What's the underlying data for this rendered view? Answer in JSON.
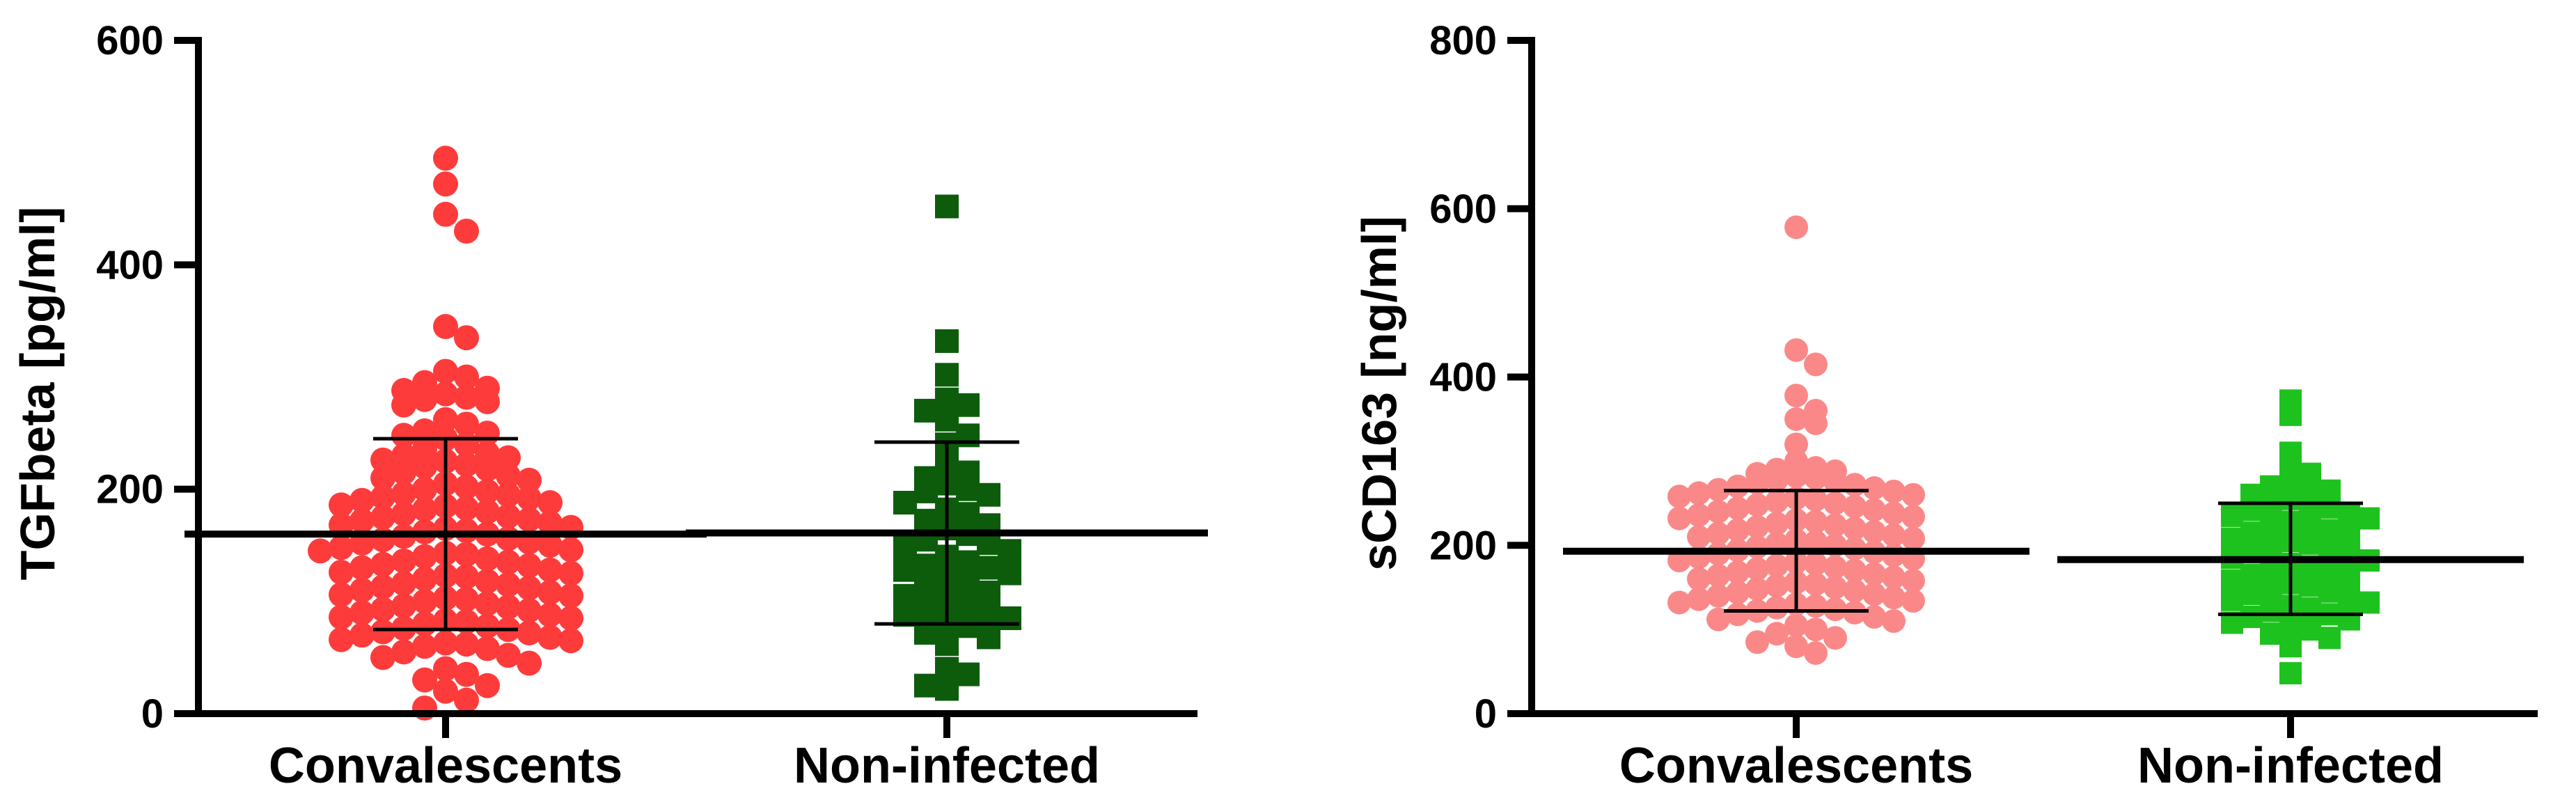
{
  "chart_data": [
    {
      "type": "scatter",
      "title": "",
      "ylabel": "TGFbeta [pg/ml]",
      "ylim": [
        0,
        600
      ],
      "yticks": [
        "0",
        "200",
        "400",
        "600"
      ],
      "categories": [
        "Convalescents",
        "Non-infected"
      ],
      "series": [
        {
          "name": "Convalescents",
          "marker": "circle",
          "color": "#fe3b3b",
          "mean": 160,
          "sd_upper": 245,
          "sd_lower": 75,
          "values": [
            495,
            472,
            445,
            430,
            345,
            335,
            305,
            300,
            295,
            290,
            288,
            285,
            282,
            280,
            278,
            275,
            262,
            258,
            252,
            250,
            248,
            245,
            240,
            236,
            232,
            230,
            228,
            226,
            225,
            222,
            220,
            218,
            215,
            212,
            210,
            208,
            205,
            202,
            200,
            198,
            196,
            195,
            193,
            192,
            190,
            188,
            186,
            185,
            183,
            182,
            180,
            178,
            176,
            175,
            173,
            172,
            170,
            168,
            166,
            165,
            163,
            162,
            160,
            158,
            156,
            155,
            153,
            152,
            150,
            148,
            146,
            145,
            143,
            142,
            140,
            138,
            136,
            135,
            133,
            132,
            130,
            128,
            126,
            125,
            123,
            122,
            120,
            118,
            116,
            115,
            113,
            112,
            110,
            108,
            106,
            105,
            103,
            102,
            100,
            98,
            96,
            95,
            93,
            92,
            90,
            88,
            86,
            85,
            83,
            82,
            80,
            78,
            76,
            75,
            73,
            72,
            70,
            68,
            66,
            65,
            63,
            62,
            60,
            58,
            55,
            52,
            50,
            45,
            40,
            35,
            30,
            25,
            20,
            12,
            5
          ]
        },
        {
          "name": "Non-infected",
          "marker": "square",
          "color": "#0c5c0c",
          "mean": 161,
          "sd_upper": 242,
          "sd_lower": 80,
          "values": [
            452,
            332,
            302,
            280,
            275,
            270,
            262,
            248,
            240,
            220,
            215,
            210,
            205,
            200,
            198,
            195,
            188,
            182,
            178,
            172,
            168,
            165,
            160,
            155,
            152,
            148,
            145,
            140,
            135,
            132,
            130,
            128,
            125,
            120,
            115,
            112,
            108,
            105,
            100,
            95,
            92,
            90,
            88,
            85,
            80,
            78,
            72,
            68,
            62,
            40,
            35,
            25,
            22
          ]
        }
      ]
    },
    {
      "type": "scatter",
      "title": "",
      "ylabel": "sCD163 [ng/ml]",
      "ylim": [
        0,
        800
      ],
      "yticks": [
        "0",
        "200",
        "400",
        "600",
        "800"
      ],
      "categories": [
        "Convalescents",
        "Non-infected"
      ],
      "series": [
        {
          "name": "Convalescents",
          "marker": "circle",
          "color": "#fb8888",
          "mean": 193,
          "sd_upper": 265,
          "sd_lower": 122,
          "values": [
            578,
            432,
            415,
            378,
            360,
            350,
            345,
            320,
            300,
            292,
            290,
            288,
            285,
            282,
            280,
            278,
            276,
            274,
            272,
            270,
            268,
            266,
            264,
            262,
            260,
            258,
            256,
            254,
            252,
            250,
            248,
            246,
            244,
            242,
            240,
            238,
            236,
            234,
            232,
            230,
            228,
            226,
            224,
            222,
            220,
            218,
            216,
            214,
            212,
            210,
            208,
            206,
            204,
            202,
            200,
            198,
            196,
            194,
            192,
            190,
            188,
            186,
            184,
            182,
            180,
            178,
            176,
            174,
            172,
            170,
            168,
            166,
            164,
            162,
            160,
            158,
            156,
            154,
            152,
            150,
            148,
            146,
            144,
            142,
            140,
            138,
            136,
            134,
            132,
            130,
            128,
            126,
            124,
            122,
            120,
            118,
            115,
            112,
            110,
            105,
            100,
            95,
            90,
            85,
            80,
            72
          ]
        },
        {
          "name": "Non-infected",
          "marker": "square",
          "color": "#1ec21e",
          "mean": 183,
          "sd_upper": 250,
          "sd_lower": 118,
          "values": [
            372,
            355,
            310,
            300,
            285,
            280,
            275,
            270,
            265,
            260,
            255,
            250,
            248,
            245,
            242,
            238,
            235,
            232,
            228,
            225,
            222,
            218,
            215,
            212,
            208,
            205,
            202,
            198,
            195,
            192,
            188,
            185,
            182,
            178,
            175,
            172,
            168,
            165,
            162,
            158,
            155,
            152,
            148,
            145,
            142,
            138,
            135,
            132,
            128,
            125,
            122,
            118,
            115,
            112,
            108,
            105,
            100,
            95,
            90,
            80,
            48
          ]
        }
      ]
    }
  ]
}
